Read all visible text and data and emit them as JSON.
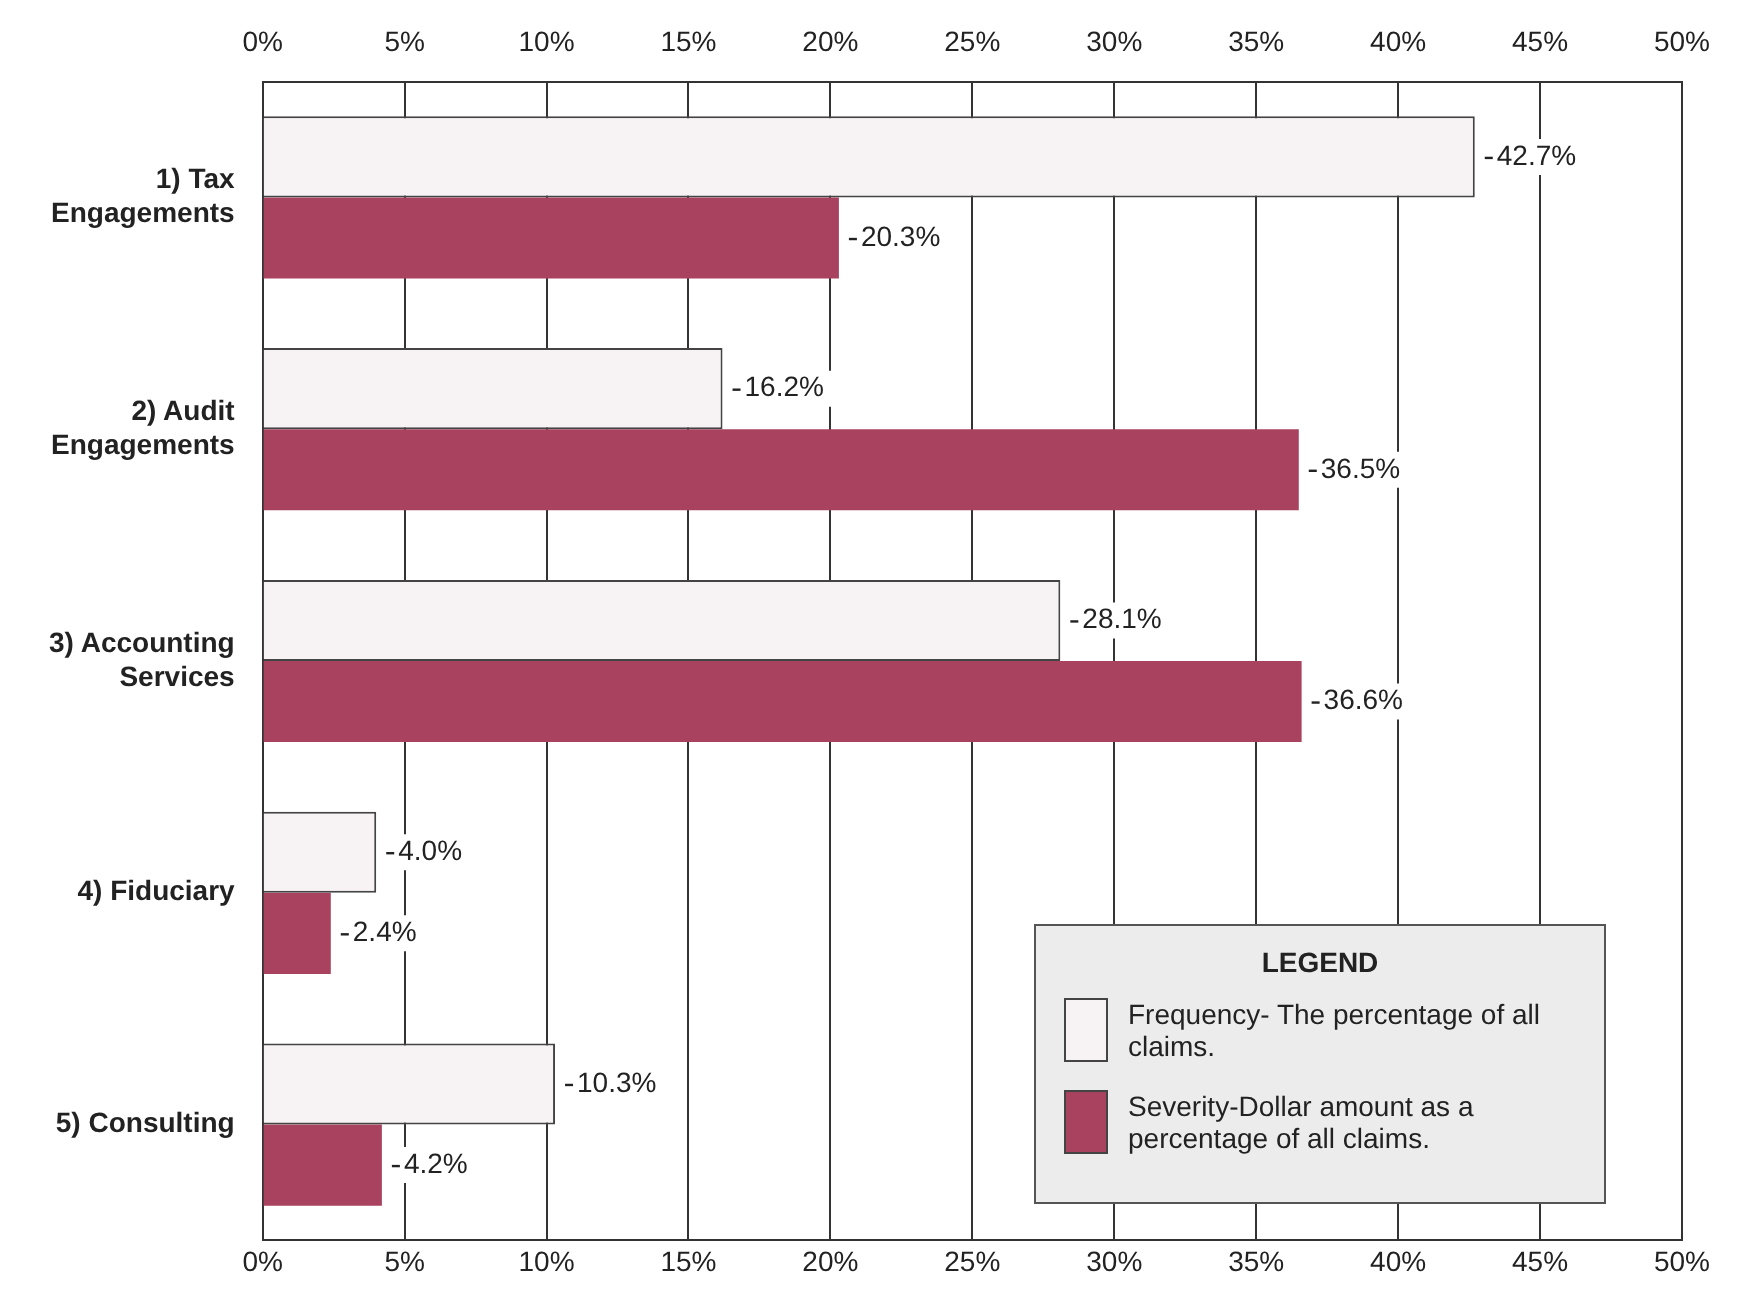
{
  "chart_data": {
    "type": "bar",
    "orientation": "horizontal",
    "legend_title": "LEGEND",
    "legend": "bottom right",
    "grid": "x",
    "categories": [
      "1) Tax Engagements",
      "2) Audit Engagements",
      "3) Accounting Services",
      "4) Fiduciary",
      "5) Consulting"
    ],
    "series": [
      {
        "name": "Frequency- The percentage of all claims.",
        "color": "#f7f2f4",
        "values": [
          42.7,
          16.2,
          28.1,
          4.0,
          10.3
        ],
        "value_labels": [
          "42.7%",
          "16.2%",
          "28.1%",
          "4.0%",
          "10.3%"
        ]
      },
      {
        "name": "Severity-Dollar amount as a percentage of all claims.",
        "color": "#a8425e",
        "values": [
          20.3,
          36.5,
          36.6,
          2.4,
          4.2
        ],
        "value_labels": [
          "20.3%",
          "36.5%",
          "36.6%",
          "2.4%",
          "4.2%"
        ]
      }
    ],
    "xlim": [
      0,
      50
    ],
    "xticks": [
      {
        "value": 0,
        "label": "0%"
      },
      {
        "value": 5,
        "label": "5%"
      },
      {
        "value": 10,
        "label": "10%"
      },
      {
        "value": 15,
        "label": "15%"
      },
      {
        "value": 20,
        "label": "20%"
      },
      {
        "value": 25,
        "label": "25%"
      },
      {
        "value": 30,
        "label": "30%"
      },
      {
        "value": 35,
        "label": "35%"
      },
      {
        "value": 40,
        "label": "40%"
      },
      {
        "value": 45,
        "label": "45%"
      },
      {
        "value": 50,
        "label": "50%"
      }
    ],
    "x2lim": [
      0,
      50
    ],
    "x2ticks": [
      {
        "value": 0,
        "label": "0%"
      },
      {
        "value": 5,
        "label": "5%"
      },
      {
        "value": 10,
        "label": "10%"
      },
      {
        "value": 15,
        "label": "15%"
      },
      {
        "value": 20,
        "label": "20%"
      },
      {
        "value": 25,
        "label": "25%"
      },
      {
        "value": 30,
        "label": "30%"
      },
      {
        "value": 35,
        "label": "35%"
      },
      {
        "value": 40,
        "label": "40%"
      },
      {
        "value": 45,
        "label": "45%"
      },
      {
        "value": 50,
        "label": "50%"
      }
    ]
  }
}
